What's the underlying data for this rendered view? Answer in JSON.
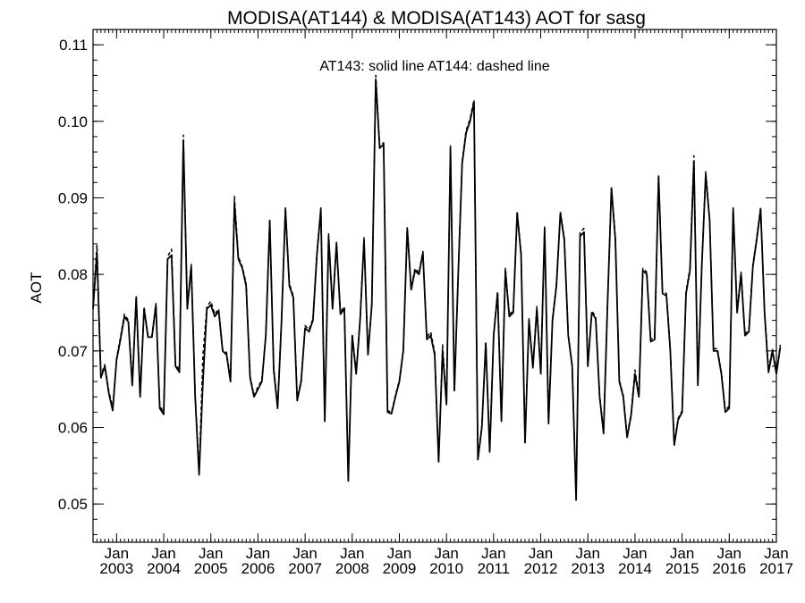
{
  "chart_data": {
    "type": "line",
    "title": "MODISA(AT144) & MODISA(AT143)  AOT for sasg",
    "annotation": "AT143: solid line   AT144: dashed line",
    "xlabel": "",
    "ylabel": "AOT",
    "xlim": [
      "2002-07",
      "2017-01"
    ],
    "ylim": [
      0.045,
      0.112
    ],
    "yticks": [
      0.05,
      0.06,
      0.07,
      0.08,
      0.09,
      0.1,
      0.11
    ],
    "ytick_labels": [
      "0.05",
      "0.06",
      "0.07",
      "0.08",
      "0.09",
      "0.10",
      "0.11"
    ],
    "xticks": [
      "2003-01",
      "2004-01",
      "2005-01",
      "2006-01",
      "2007-01",
      "2008-01",
      "2009-01",
      "2010-01",
      "2011-01",
      "2012-01",
      "2013-01",
      "2014-01",
      "2015-01",
      "2016-01",
      "2017-01"
    ],
    "xtick_labels": [
      {
        "month": "Jan",
        "year": "2003"
      },
      {
        "month": "Jan",
        "year": "2004"
      },
      {
        "month": "Jan",
        "year": "2005"
      },
      {
        "month": "Jan",
        "year": "2006"
      },
      {
        "month": "Jan",
        "year": "2007"
      },
      {
        "month": "Jan",
        "year": "2008"
      },
      {
        "month": "Jan",
        "year": "2009"
      },
      {
        "month": "Jan",
        "year": "2010"
      },
      {
        "month": "Jan",
        "year": "2011"
      },
      {
        "month": "Jan",
        "year": "2012"
      },
      {
        "month": "Jan",
        "year": "2013"
      },
      {
        "month": "Jan",
        "year": "2014"
      },
      {
        "month": "Jan",
        "year": "2015"
      },
      {
        "month": "Jan",
        "year": "2016"
      },
      {
        "month": "Jan",
        "year": "2017"
      }
    ],
    "grid": false,
    "series": [
      {
        "name": "AT143",
        "style": "solid",
        "color": "#000000",
        "x": [
          "2002-07",
          "2002-08",
          "2002-09",
          "2002-10",
          "2002-11",
          "2002-12",
          "2003-01",
          "2003-02",
          "2003-03",
          "2003-04",
          "2003-05",
          "2003-06",
          "2003-07",
          "2003-08",
          "2003-09",
          "2003-10",
          "2003-11",
          "2003-12",
          "2004-01",
          "2004-02",
          "2004-03",
          "2004-04",
          "2004-05",
          "2004-06",
          "2004-07",
          "2004-08",
          "2004-09",
          "2004-10",
          "2004-11",
          "2004-12",
          "2005-01",
          "2005-02",
          "2005-03",
          "2005-04",
          "2005-05",
          "2005-06",
          "2005-07",
          "2005-08",
          "2005-09",
          "2005-10",
          "2005-11",
          "2005-12",
          "2006-01",
          "2006-02",
          "2006-03",
          "2006-04",
          "2006-05",
          "2006-06",
          "2006-07",
          "2006-08",
          "2006-09",
          "2006-10",
          "2006-11",
          "2006-12",
          "2007-01",
          "2007-02",
          "2007-03",
          "2007-04",
          "2007-05",
          "2007-06",
          "2007-07",
          "2007-08",
          "2007-09",
          "2007-10",
          "2007-11",
          "2007-12",
          "2008-01",
          "2008-02",
          "2008-03",
          "2008-04",
          "2008-05",
          "2008-06",
          "2008-07",
          "2008-08",
          "2008-09",
          "2008-10",
          "2008-11",
          "2008-12",
          "2009-01",
          "2009-02",
          "2009-03",
          "2009-04",
          "2009-05",
          "2009-06",
          "2009-07",
          "2009-08",
          "2009-09",
          "2009-10",
          "2009-11",
          "2009-12",
          "2010-01",
          "2010-02",
          "2010-03",
          "2010-04",
          "2010-05",
          "2010-06",
          "2010-07",
          "2010-08",
          "2010-09",
          "2010-10",
          "2010-11",
          "2010-12",
          "2011-01",
          "2011-02",
          "2011-03",
          "2011-04",
          "2011-05",
          "2011-06",
          "2011-07",
          "2011-08",
          "2011-09",
          "2011-10",
          "2011-11",
          "2011-12",
          "2012-01",
          "2012-02",
          "2012-03",
          "2012-04",
          "2012-05",
          "2012-06",
          "2012-07",
          "2012-08",
          "2012-09",
          "2012-10",
          "2012-11",
          "2012-12",
          "2013-01",
          "2013-02",
          "2013-03",
          "2013-04",
          "2013-05",
          "2013-06",
          "2013-07",
          "2013-08",
          "2013-09",
          "2013-10",
          "2013-11",
          "2013-12",
          "2014-01",
          "2014-02",
          "2014-03",
          "2014-04",
          "2014-05",
          "2014-06",
          "2014-07",
          "2014-08",
          "2014-09",
          "2014-10",
          "2014-11",
          "2014-12",
          "2015-01",
          "2015-02",
          "2015-03",
          "2015-04",
          "2015-05",
          "2015-06",
          "2015-07",
          "2015-08",
          "2015-09",
          "2015-10",
          "2015-11",
          "2015-12",
          "2016-01",
          "2016-02",
          "2016-03",
          "2016-04",
          "2016-05",
          "2016-06",
          "2016-07",
          "2016-08",
          "2016-09",
          "2016-10",
          "2016-11",
          "2016-12",
          "2017-01",
          "2017-02"
        ],
        "values": [
          0.0755,
          0.0828,
          0.0665,
          0.068,
          0.0645,
          0.0622,
          0.0688,
          0.0715,
          0.0745,
          0.0738,
          0.0655,
          0.077,
          0.064,
          0.0755,
          0.0718,
          0.0718,
          0.076,
          0.0625,
          0.0617,
          0.082,
          0.0825,
          0.068,
          0.0672,
          0.0975,
          0.0755,
          0.081,
          0.064,
          0.0538,
          0.066,
          0.0755,
          0.076,
          0.0745,
          0.0752,
          0.07,
          0.0695,
          0.066,
          0.0893,
          0.082,
          0.0808,
          0.0785,
          0.0665,
          0.064,
          0.065,
          0.066,
          0.072,
          0.087,
          0.0675,
          0.0625,
          0.074,
          0.0885,
          0.0785,
          0.077,
          0.0635,
          0.066,
          0.073,
          0.0725,
          0.074,
          0.0825,
          0.0885,
          0.0608,
          0.085,
          0.0755,
          0.084,
          0.0748,
          0.0755,
          0.053,
          0.072,
          0.067,
          0.074,
          0.0845,
          0.0695,
          0.076,
          0.1055,
          0.0965,
          0.097,
          0.062,
          0.0618,
          0.064,
          0.066,
          0.07,
          0.086,
          0.078,
          0.0805,
          0.08,
          0.0828,
          0.0715,
          0.072,
          0.0695,
          0.0555,
          0.07,
          0.063,
          0.0965,
          0.0648,
          0.08,
          0.0945,
          0.0985,
          0.1,
          0.1025,
          0.0558,
          0.06,
          0.071,
          0.0568,
          0.072,
          0.0775,
          0.0608,
          0.0805,
          0.0745,
          0.075,
          0.088,
          0.0825,
          0.058,
          0.074,
          0.0678,
          0.0755,
          0.067,
          0.086,
          0.0605,
          0.074,
          0.0785,
          0.088,
          0.0845,
          0.072,
          0.068,
          0.0505,
          0.085,
          0.0855,
          0.068,
          0.075,
          0.0742,
          0.064,
          0.0592,
          0.076,
          0.0912,
          0.0845,
          0.066,
          0.064,
          0.0587,
          0.0615,
          0.067,
          0.064,
          0.0805,
          0.08,
          0.0712,
          0.0715,
          0.0928,
          0.0775,
          0.0772,
          0.07,
          0.0577,
          0.061,
          0.062,
          0.0775,
          0.0805,
          0.0948,
          0.0655,
          0.081,
          0.093,
          0.087,
          0.07,
          0.07,
          0.067,
          0.062,
          0.0625,
          0.0885,
          0.075,
          0.08,
          0.072,
          0.0725,
          0.081,
          0.0845,
          0.0885,
          0.075,
          0.0672,
          0.07,
          0.067,
          0.0705
        ]
      },
      {
        "name": "AT144",
        "style": "dashed",
        "color": "#000000",
        "x": [
          "2002-07",
          "2002-08",
          "2002-09",
          "2002-10",
          "2002-11",
          "2002-12",
          "2003-01",
          "2003-02",
          "2003-03",
          "2003-04",
          "2003-05",
          "2003-06",
          "2003-07",
          "2003-08",
          "2003-09",
          "2003-10",
          "2003-11",
          "2003-12",
          "2004-01",
          "2004-02",
          "2004-03",
          "2004-04",
          "2004-05",
          "2004-06",
          "2004-07",
          "2004-08",
          "2004-09",
          "2004-10",
          "2004-11",
          "2004-12",
          "2005-01",
          "2005-02",
          "2005-03",
          "2005-04",
          "2005-05",
          "2005-06",
          "2005-07",
          "2005-08",
          "2005-09",
          "2005-10",
          "2005-11",
          "2005-12",
          "2006-01",
          "2006-02",
          "2006-03",
          "2006-04",
          "2006-05",
          "2006-06",
          "2006-07",
          "2006-08",
          "2006-09",
          "2006-10",
          "2006-11",
          "2006-12",
          "2007-01",
          "2007-02",
          "2007-03",
          "2007-04",
          "2007-05",
          "2007-06",
          "2007-07",
          "2007-08",
          "2007-09",
          "2007-10",
          "2007-11",
          "2007-12",
          "2008-01",
          "2008-02",
          "2008-03",
          "2008-04",
          "2008-05",
          "2008-06",
          "2008-07",
          "2008-08",
          "2008-09",
          "2008-10",
          "2008-11",
          "2008-12",
          "2009-01",
          "2009-02",
          "2009-03",
          "2009-04",
          "2009-05",
          "2009-06",
          "2009-07",
          "2009-08",
          "2009-09",
          "2009-10",
          "2009-11",
          "2009-12",
          "2010-01",
          "2010-02",
          "2010-03",
          "2010-04",
          "2010-05",
          "2010-06",
          "2010-07",
          "2010-08",
          "2010-09",
          "2010-10",
          "2010-11",
          "2010-12",
          "2011-01",
          "2011-02",
          "2011-03",
          "2011-04",
          "2011-05",
          "2011-06",
          "2011-07",
          "2011-08",
          "2011-09",
          "2011-10",
          "2011-11",
          "2011-12",
          "2012-01",
          "2012-02",
          "2012-03",
          "2012-04",
          "2012-05",
          "2012-06",
          "2012-07",
          "2012-08",
          "2012-09",
          "2012-10",
          "2012-11",
          "2012-12",
          "2013-01",
          "2013-02",
          "2013-03",
          "2013-04",
          "2013-05",
          "2013-06",
          "2013-07",
          "2013-08",
          "2013-09",
          "2013-10",
          "2013-11",
          "2013-12",
          "2014-01",
          "2014-02",
          "2014-03",
          "2014-04",
          "2014-05",
          "2014-06",
          "2014-07",
          "2014-08",
          "2014-09",
          "2014-10",
          "2014-11",
          "2014-12",
          "2015-01",
          "2015-02",
          "2015-03",
          "2015-04",
          "2015-05",
          "2015-06",
          "2015-07",
          "2015-08",
          "2015-09",
          "2015-10",
          "2015-11",
          "2015-12",
          "2016-01",
          "2016-02",
          "2016-03",
          "2016-04",
          "2016-05",
          "2016-06",
          "2016-07",
          "2016-08",
          "2016-09",
          "2016-10",
          "2016-11",
          "2016-12",
          "2017-01",
          "2017-02"
        ],
        "values": [
          0.076,
          0.0838,
          0.0668,
          0.0682,
          0.0648,
          0.0625,
          0.069,
          0.0718,
          0.0748,
          0.074,
          0.0657,
          0.0772,
          0.0642,
          0.0757,
          0.072,
          0.072,
          0.0762,
          0.0628,
          0.062,
          0.0823,
          0.0833,
          0.0683,
          0.0675,
          0.0982,
          0.0758,
          0.0813,
          0.0642,
          0.054,
          0.0695,
          0.0758,
          0.0765,
          0.0748,
          0.0755,
          0.0702,
          0.0698,
          0.0662,
          0.0902,
          0.0823,
          0.081,
          0.0788,
          0.0667,
          0.0642,
          0.0653,
          0.0662,
          0.0722,
          0.0872,
          0.0678,
          0.0627,
          0.0742,
          0.0887,
          0.0788,
          0.0772,
          0.0637,
          0.0662,
          0.0733,
          0.0728,
          0.0742,
          0.0828,
          0.0887,
          0.061,
          0.0853,
          0.0757,
          0.0842,
          0.075,
          0.0758,
          0.0532,
          0.0722,
          0.0672,
          0.0742,
          0.0848,
          0.0698,
          0.0762,
          0.106,
          0.0968,
          0.0972,
          0.0622,
          0.062,
          0.0642,
          0.0662,
          0.0702,
          0.0862,
          0.0782,
          0.0808,
          0.0802,
          0.083,
          0.0718,
          0.0725,
          0.0698,
          0.0557,
          0.0708,
          0.0632,
          0.0968,
          0.065,
          0.0802,
          0.0948,
          0.0988,
          0.1003,
          0.1028,
          0.056,
          0.0602,
          0.0712,
          0.057,
          0.0722,
          0.0778,
          0.061,
          0.0808,
          0.0748,
          0.0752,
          0.0882,
          0.0828,
          0.0582,
          0.0742,
          0.068,
          0.0758,
          0.0672,
          0.0862,
          0.0607,
          0.0742,
          0.0788,
          0.0882,
          0.0848,
          0.0722,
          0.0682,
          0.0507,
          0.0855,
          0.086,
          0.0682,
          0.0752,
          0.0745,
          0.0642,
          0.0594,
          0.0762,
          0.0915,
          0.0848,
          0.0662,
          0.0642,
          0.059,
          0.0617,
          0.0675,
          0.0642,
          0.0808,
          0.0803,
          0.0715,
          0.0718,
          0.093,
          0.0778,
          0.0775,
          0.0702,
          0.058,
          0.0612,
          0.0622,
          0.0778,
          0.0808,
          0.0955,
          0.0658,
          0.0812,
          0.0935,
          0.0872,
          0.0703,
          0.0703,
          0.0672,
          0.0622,
          0.0628,
          0.0887,
          0.0752,
          0.0803,
          0.0722,
          0.0728,
          0.0812,
          0.0848,
          0.0888,
          0.0752,
          0.0675,
          0.0702,
          0.0672,
          0.0708
        ]
      }
    ]
  }
}
